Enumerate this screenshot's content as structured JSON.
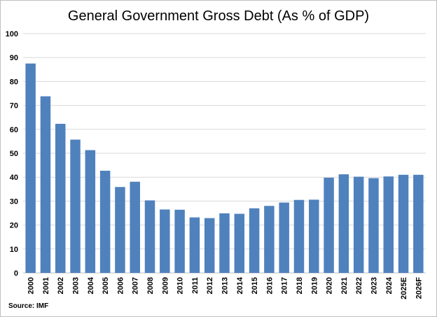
{
  "chart_data": {
    "type": "bar",
    "title": "General Government Gross Debt (As % of GDP)",
    "categories": [
      "2000",
      "2001",
      "2002",
      "2003",
      "2004",
      "2005",
      "2006",
      "2007",
      "2008",
      "2009",
      "2010",
      "2011",
      "2012",
      "2013",
      "2014",
      "2015",
      "2016",
      "2017",
      "2018",
      "2019",
      "2020",
      "2021",
      "2022",
      "2023",
      "2024",
      "2025E",
      "2026F"
    ],
    "values": [
      87.5,
      73.8,
      62.3,
      55.7,
      51.3,
      42.7,
      35.9,
      38.1,
      30.3,
      26.5,
      26.4,
      23.2,
      22.9,
      24.9,
      24.7,
      27.0,
      28.0,
      29.4,
      30.5,
      30.6,
      39.8,
      41.2,
      40.2,
      39.6,
      40.3,
      41.0,
      41.0
    ],
    "ylim": [
      0,
      100
    ],
    "yticks": [
      0,
      10,
      20,
      30,
      40,
      50,
      60,
      70,
      80,
      90,
      100
    ],
    "grid": true,
    "legend": "none",
    "bar_color": "#4F81BD",
    "grid_color": "#d9d9d9",
    "source": "Source: IMF"
  }
}
